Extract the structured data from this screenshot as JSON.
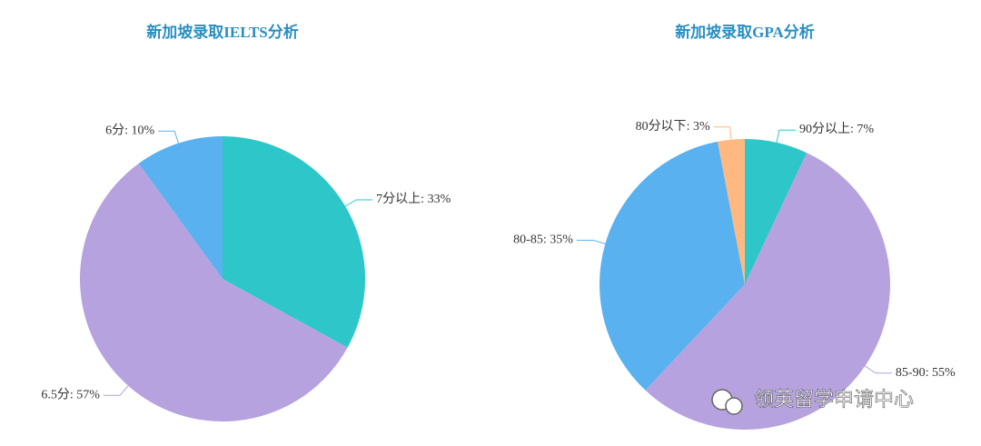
{
  "chart_data": [
    {
      "type": "pie",
      "title": "新加坡录取IELTS分析",
      "categories": [
        "7分以上",
        "6.5分",
        "6分"
      ],
      "values": [
        33,
        57,
        10
      ],
      "value_labels": [
        "33%",
        "57%",
        "10%"
      ],
      "colors": [
        "#2ec7c9",
        "#b6a2de",
        "#5ab1ef"
      ]
    },
    {
      "type": "pie",
      "title": "新加坡录取GPA分析",
      "categories": [
        "90分以上",
        "85-90",
        "80-85",
        "80分以下"
      ],
      "values": [
        7,
        55,
        35,
        3
      ],
      "value_labels": [
        "7%",
        "55%",
        "35%",
        "3%"
      ],
      "colors": [
        "#2ec7c9",
        "#b6a2de",
        "#5ab1ef",
        "#ffb980"
      ]
    }
  ],
  "watermark": "领英留学申请中心"
}
